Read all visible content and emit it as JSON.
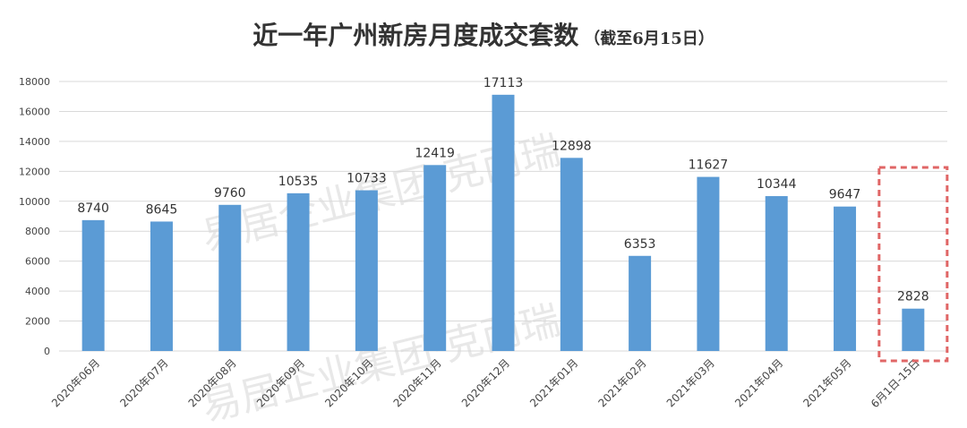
{
  "title": "近一年广州新房月度成交套数",
  "subtitle": "（截至6月15日）",
  "watermark": "易居企业集团·克而瑞",
  "chart_data": {
    "type": "bar",
    "categories": [
      "2020年06月",
      "2020年07月",
      "2020年08月",
      "2020年09月",
      "2020年10月",
      "2020年11月",
      "2020年12月",
      "2021年01月",
      "2021年02月",
      "2021年03月",
      "2021年04月",
      "2021年05月",
      "6月1日-15日"
    ],
    "values": [
      8740,
      8645,
      9760,
      10535,
      10733,
      12419,
      17113,
      12898,
      6353,
      11627,
      10344,
      9647,
      2828
    ],
    "ylim": [
      0,
      18000
    ],
    "yticks": [
      0,
      2000,
      4000,
      6000,
      8000,
      10000,
      12000,
      14000,
      16000,
      18000
    ],
    "grid": true,
    "bar_color": "#5b9bd5",
    "highlight_color": "#e06666",
    "highlight_index": 12
  }
}
